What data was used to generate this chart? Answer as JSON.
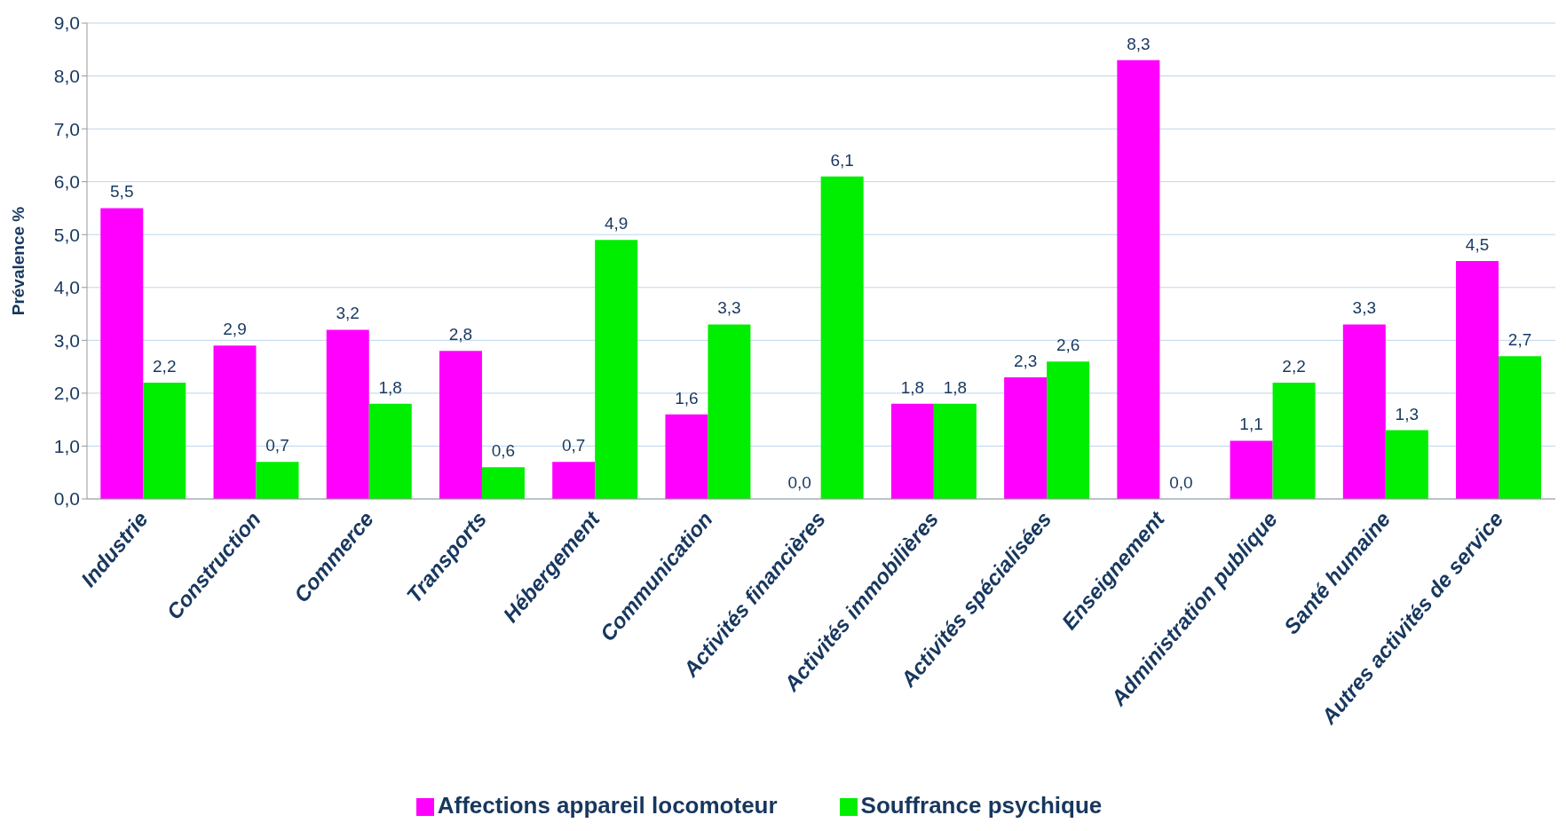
{
  "chart_data": {
    "type": "bar",
    "ylabel": "Prévalence %",
    "categories": [
      "Industrie",
      "Construction",
      "Commerce",
      "Transports",
      "Hébergement",
      "Communication",
      "Activités financières",
      "Activités immobilières",
      "Activités spécialisées",
      "Enseignement",
      "Administration publique",
      "Santé humaine",
      "Autres activités de service"
    ],
    "series": [
      {
        "name": "Affections appareil locomoteur",
        "color": "#ff00ff",
        "values": [
          5.5,
          2.9,
          3.2,
          2.8,
          0.7,
          1.6,
          0.0,
          1.8,
          2.3,
          8.3,
          1.1,
          3.3,
          4.5
        ],
        "value_labels": [
          "5,5",
          "2,9",
          "3,2",
          "2,8",
          "0,7",
          "1,6",
          "0,0",
          "1,8",
          "2,3",
          "8,3",
          "1,1",
          "3,3",
          "4,5"
        ]
      },
      {
        "name": "Souffrance psychique",
        "color": "#00ee00",
        "values": [
          2.2,
          0.7,
          1.8,
          0.6,
          4.9,
          3.3,
          6.1,
          1.8,
          2.6,
          0.0,
          2.2,
          1.3,
          2.7
        ],
        "value_labels": [
          "2,2",
          "0,7",
          "1,8",
          "0,6",
          "4,9",
          "3,3",
          "6,1",
          "1,8",
          "2,6",
          "0,0",
          "2,2",
          "1,3",
          "2,7"
        ]
      }
    ],
    "ylim": [
      0,
      9
    ],
    "yticks": [
      {
        "value": 0,
        "label": "0,0"
      },
      {
        "value": 1,
        "label": "1,0"
      },
      {
        "value": 2,
        "label": "2,0"
      },
      {
        "value": 3,
        "label": "3,0"
      },
      {
        "value": 4,
        "label": "4,0"
      },
      {
        "value": 5,
        "label": "5,0"
      },
      {
        "value": 6,
        "label": "6,0"
      },
      {
        "value": 7,
        "label": "7,0"
      },
      {
        "value": 8,
        "label": "8,0"
      },
      {
        "value": 9,
        "label": "9,0"
      }
    ],
    "grid": "y",
    "legend": "bottom"
  }
}
